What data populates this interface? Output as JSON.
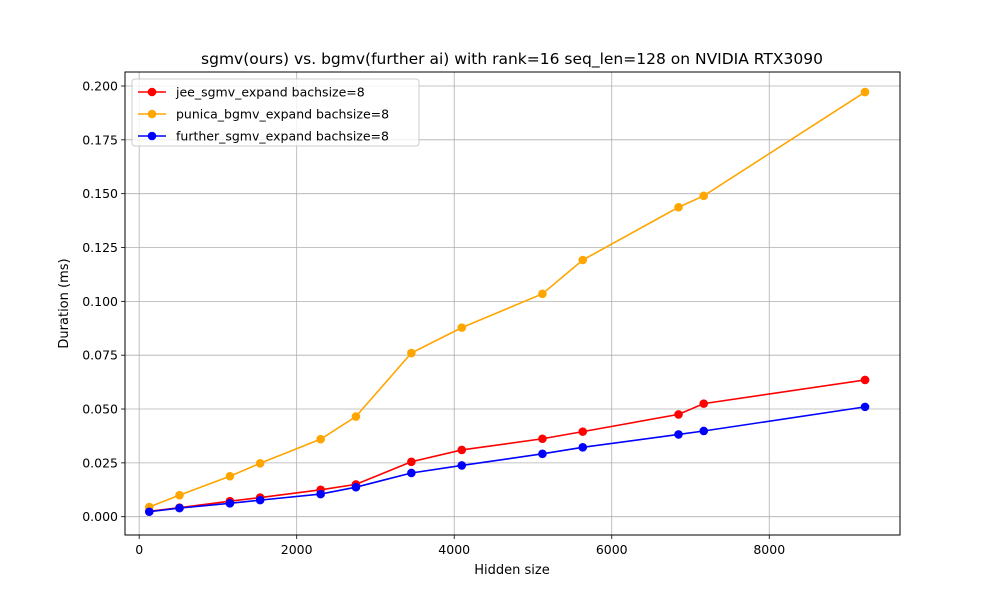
{
  "chart_data": {
    "type": "line",
    "title": "sgmv(ours) vs. bgmv(further ai) with rank=16 seq_len=128 on NVIDIA RTX3090",
    "xlabel": "Hidden size",
    "ylabel": "Duration (ms)",
    "xlim": [
      -180,
      9660
    ],
    "ylim": [
      -0.0085,
      0.2065
    ],
    "xticks": [
      0,
      2000,
      4000,
      6000,
      8000
    ],
    "xtick_labels": [
      "0",
      "2000",
      "4000",
      "6000",
      "8000"
    ],
    "yticks": [
      0.0,
      0.025,
      0.05,
      0.075,
      0.1,
      0.125,
      0.15,
      0.175,
      0.2
    ],
    "ytick_labels": [
      "0.000",
      "0.025",
      "0.050",
      "0.075",
      "0.100",
      "0.125",
      "0.150",
      "0.175",
      "0.200"
    ],
    "grid": true,
    "legend_position": "top-left",
    "x": [
      128,
      512,
      1152,
      1536,
      2304,
      2752,
      3456,
      4096,
      5120,
      5632,
      6848,
      7168,
      9216
    ],
    "series": [
      {
        "name": "jee_sgmv_expand bachsize=8",
        "color": "#ff0000",
        "values": [
          0.0025,
          0.0042,
          0.0072,
          0.0089,
          0.0125,
          0.015,
          0.0255,
          0.031,
          0.0362,
          0.0395,
          0.0475,
          0.0525,
          0.0635
        ]
      },
      {
        "name": "punica_bgmv_expand bachsize=8",
        "color": "#ffa500",
        "values": [
          0.0045,
          0.01,
          0.0188,
          0.0248,
          0.036,
          0.0465,
          0.076,
          0.0878,
          0.1035,
          0.1192,
          0.1437,
          0.149,
          0.1972
        ]
      },
      {
        "name": "further_sgmv_expand bachsize=8",
        "color": "#0000ff",
        "values": [
          0.0023,
          0.004,
          0.0062,
          0.0077,
          0.0105,
          0.0137,
          0.0203,
          0.0238,
          0.0292,
          0.0322,
          0.0382,
          0.0398,
          0.051
        ]
      }
    ]
  }
}
